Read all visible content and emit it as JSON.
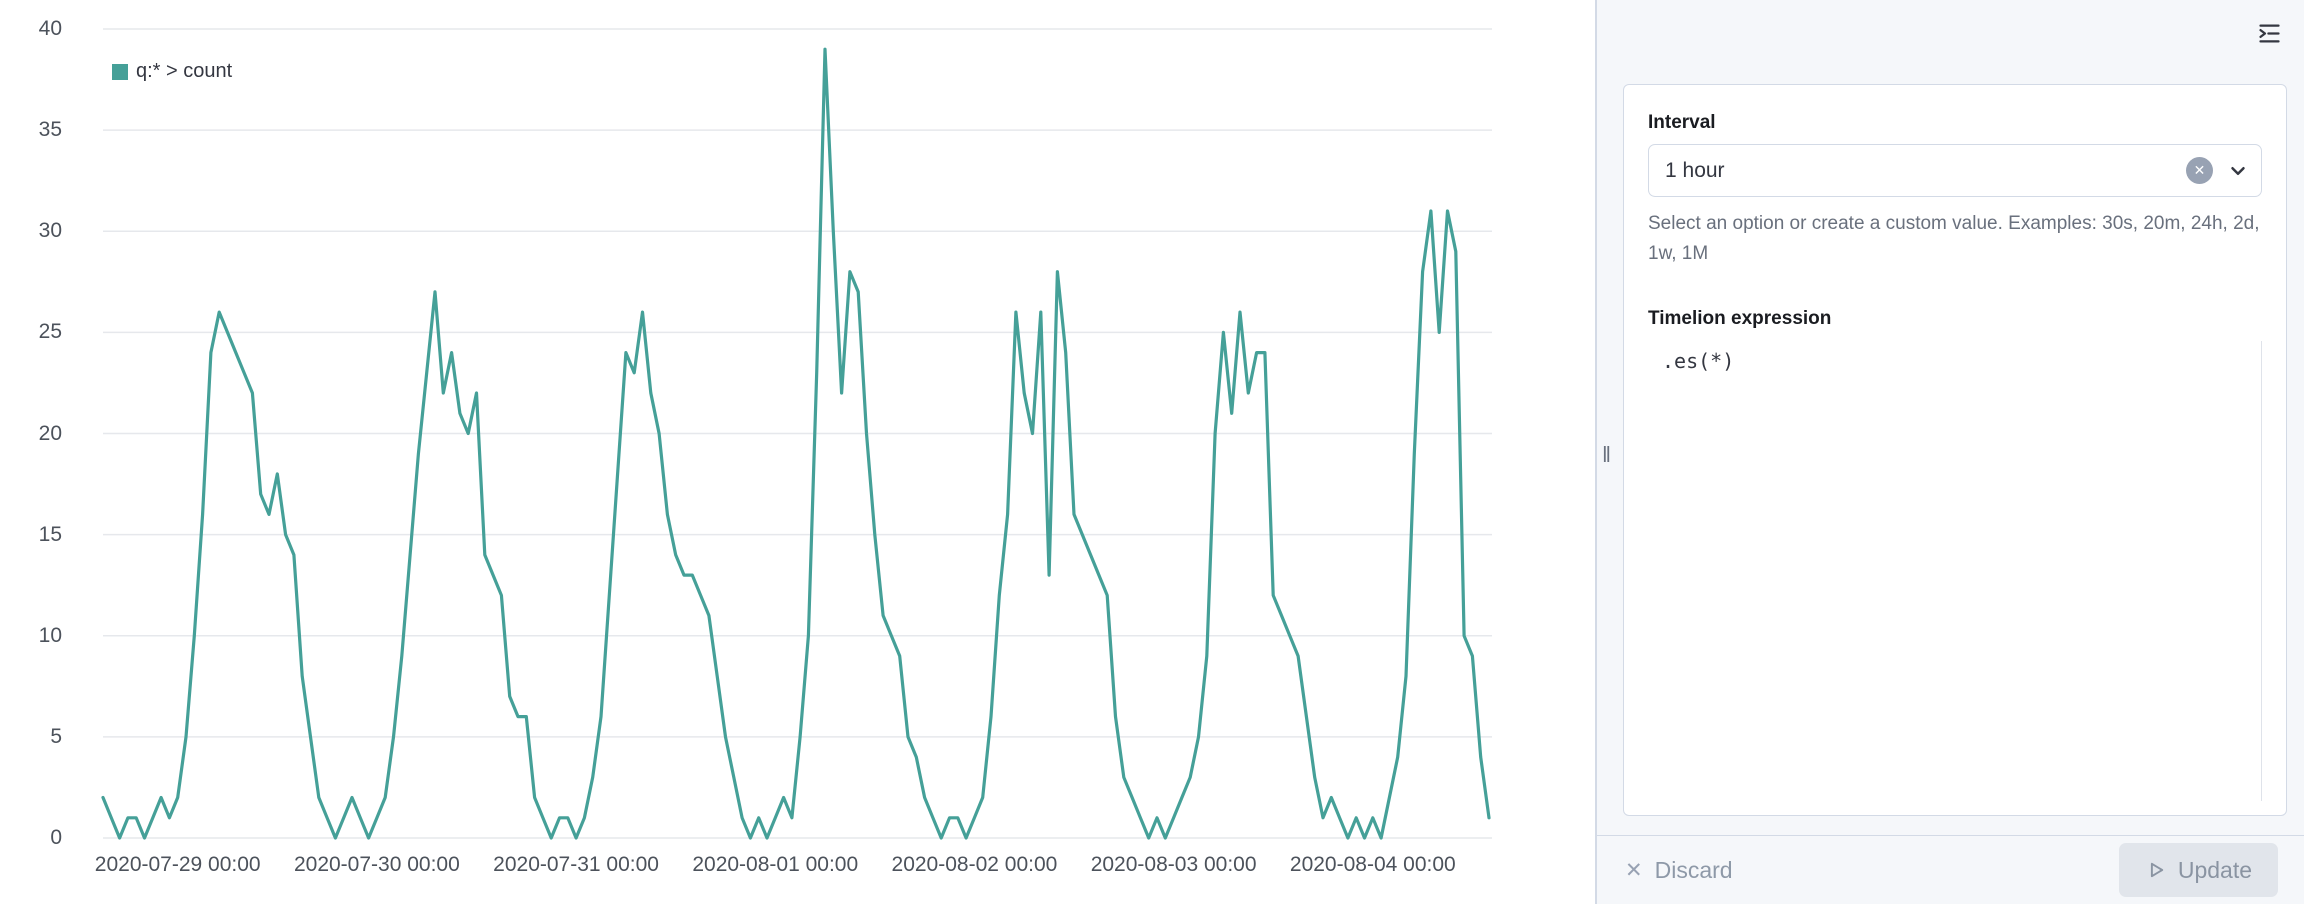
{
  "chart_data": {
    "type": "line",
    "title": "",
    "legend_position": "top-left",
    "grid": "horizontal",
    "ylim": [
      0,
      40
    ],
    "y_ticks": [
      0,
      5,
      10,
      15,
      20,
      25,
      30,
      35,
      40
    ],
    "x_tick_labels": [
      "2020-07-29 00:00",
      "2020-07-30 00:00",
      "2020-07-31 00:00",
      "2020-08-01 00:00",
      "2020-08-02 00:00",
      "2020-08-03 00:00",
      "2020-08-04 00:00"
    ],
    "x_tick_offset_hours": [
      9,
      33,
      57,
      81,
      105,
      129,
      153
    ],
    "series": [
      {
        "name": "q:* > count",
        "color": "#45a098",
        "start": "2020-07-28 15:00",
        "interval": "1h",
        "values": [
          2,
          1,
          0,
          1,
          1,
          0,
          1,
          2,
          1,
          2,
          5,
          10,
          16,
          24,
          26,
          25,
          24,
          23,
          22,
          17,
          16,
          18,
          15,
          14,
          8,
          5,
          2,
          1,
          0,
          1,
          2,
          1,
          0,
          1,
          2,
          5,
          9,
          14,
          19,
          23,
          27,
          22,
          24,
          21,
          20,
          22,
          14,
          13,
          12,
          7,
          6,
          6,
          2,
          1,
          0,
          1,
          1,
          0,
          1,
          3,
          6,
          12,
          18,
          24,
          23,
          26,
          22,
          20,
          16,
          14,
          13,
          13,
          12,
          11,
          8,
          5,
          3,
          1,
          0,
          1,
          0,
          1,
          2,
          1,
          5,
          10,
          23,
          39,
          30,
          22,
          28,
          27,
          20,
          15,
          11,
          10,
          9,
          5,
          4,
          2,
          1,
          0,
          1,
          1,
          0,
          1,
          2,
          6,
          12,
          16,
          26,
          22,
          20,
          26,
          13,
          28,
          24,
          16,
          15,
          14,
          13,
          12,
          6,
          3,
          2,
          1,
          0,
          1,
          0,
          1,
          2,
          3,
          5,
          9,
          20,
          25,
          21,
          26,
          22,
          24,
          24,
          12,
          11,
          10,
          9,
          6,
          3,
          1,
          2,
          1,
          0,
          1,
          0,
          1,
          0,
          2,
          4,
          8,
          19,
          28,
          31,
          25,
          31,
          29,
          10,
          9,
          4,
          1
        ]
      }
    ]
  },
  "panel": {
    "interval_label": "Interval",
    "interval_value": "1 hour",
    "interval_help": "Select an option or create a custom value. Examples: 30s, 20m, 24h, 2d, 1w, 1M",
    "expression_label": "Timelion expression",
    "expression_value": ".es(*)"
  },
  "footer": {
    "discard_label": "Discard",
    "update_label": "Update"
  },
  "colors": {
    "series": "#45a098",
    "panel_border": "#d3dae6",
    "grid_line": "#e6e8ec"
  }
}
